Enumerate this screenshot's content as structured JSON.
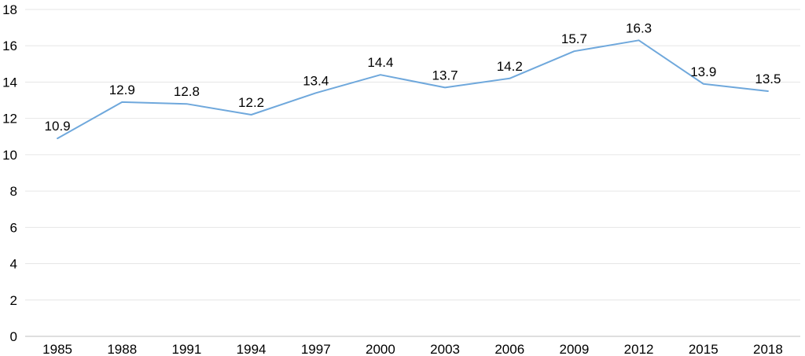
{
  "chart_data": {
    "type": "line",
    "title": "",
    "xlabel": "",
    "ylabel": "",
    "categories": [
      "1985",
      "1988",
      "1991",
      "1994",
      "1997",
      "2000",
      "2003",
      "2006",
      "2009",
      "2012",
      "2015",
      "2018"
    ],
    "series": [
      {
        "values": [
          10.9,
          12.9,
          12.8,
          12.2,
          13.4,
          14.4,
          13.7,
          14.2,
          15.7,
          16.3,
          13.9,
          13.5
        ],
        "color": "#6fa8dc"
      }
    ],
    "data_labels": [
      "10.9",
      "12.9",
      "12.8",
      "12.2",
      "13.4",
      "14.4",
      "13.7",
      "14.2",
      "15.7",
      "16.3",
      "13.9",
      "13.5"
    ],
    "ylim": [
      0,
      18
    ],
    "yticks": [
      "0",
      "2",
      "4",
      "6",
      "8",
      "10",
      "12",
      "14",
      "16",
      "18"
    ],
    "grid": true,
    "legend": "none"
  }
}
